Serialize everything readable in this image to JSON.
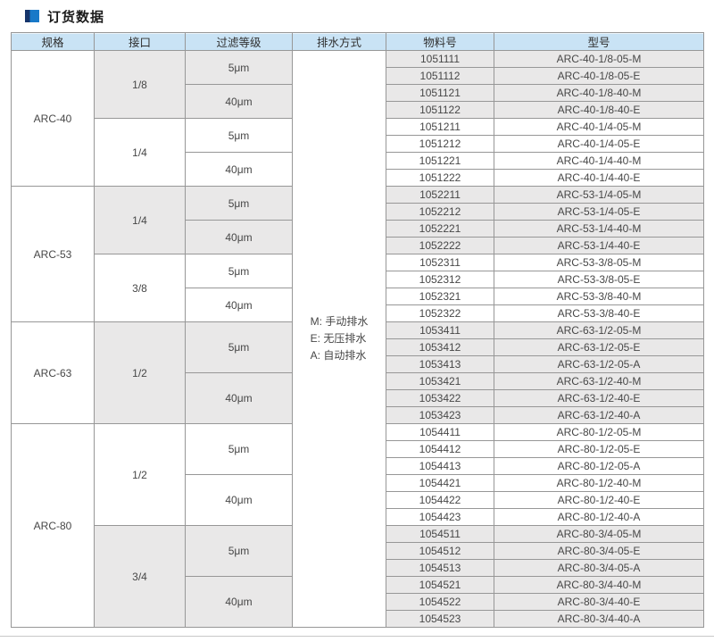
{
  "page": {
    "title": "订货数据",
    "accent_dark_blue": "#16356b",
    "accent_blue": "#1879c8",
    "header_bg": "#c9e3f5",
    "shaded_row_bg": "#e9e8e8"
  },
  "table": {
    "headers": [
      "规格",
      "接口",
      "过滤等级",
      "排水方式",
      "物料号",
      "型号"
    ],
    "drain_legend": [
      "M: 手动排水",
      "E: 无压排水",
      "A: 自动排水"
    ],
    "groups": [
      {
        "spec": "ARC-40",
        "subgroups": [
          {
            "port": "1/8",
            "shaded": true,
            "filters": [
              {
                "grade": "5μm",
                "rows": [
                  {
                    "material": "1051111",
                    "model": "ARC-40-1/8-05-M"
                  },
                  {
                    "material": "1051112",
                    "model": "ARC-40-1/8-05-E"
                  }
                ]
              },
              {
                "grade": "40μm",
                "rows": [
                  {
                    "material": "1051121",
                    "model": "ARC-40-1/8-40-M"
                  },
                  {
                    "material": "1051122",
                    "model": "ARC-40-1/8-40-E"
                  }
                ]
              }
            ]
          },
          {
            "port": "1/4",
            "shaded": false,
            "filters": [
              {
                "grade": "5μm",
                "rows": [
                  {
                    "material": "1051211",
                    "model": "ARC-40-1/4-05-M"
                  },
                  {
                    "material": "1051212",
                    "model": "ARC-40-1/4-05-E"
                  }
                ]
              },
              {
                "grade": "40μm",
                "rows": [
                  {
                    "material": "1051221",
                    "model": "ARC-40-1/4-40-M"
                  },
                  {
                    "material": "1051222",
                    "model": "ARC-40-1/4-40-E"
                  }
                ]
              }
            ]
          }
        ]
      },
      {
        "spec": "ARC-53",
        "subgroups": [
          {
            "port": "1/4",
            "shaded": true,
            "filters": [
              {
                "grade": "5μm",
                "rows": [
                  {
                    "material": "1052211",
                    "model": "ARC-53-1/4-05-M"
                  },
                  {
                    "material": "1052212",
                    "model": "ARC-53-1/4-05-E"
                  }
                ]
              },
              {
                "grade": "40μm",
                "rows": [
                  {
                    "material": "1052221",
                    "model": "ARC-53-1/4-40-M"
                  },
                  {
                    "material": "1052222",
                    "model": "ARC-53-1/4-40-E"
                  }
                ]
              }
            ]
          },
          {
            "port": "3/8",
            "shaded": false,
            "filters": [
              {
                "grade": "5μm",
                "rows": [
                  {
                    "material": "1052311",
                    "model": "ARC-53-3/8-05-M"
                  },
                  {
                    "material": "1052312",
                    "model": "ARC-53-3/8-05-E"
                  }
                ]
              },
              {
                "grade": "40μm",
                "rows": [
                  {
                    "material": "1052321",
                    "model": "ARC-53-3/8-40-M"
                  },
                  {
                    "material": "1052322",
                    "model": "ARC-53-3/8-40-E"
                  }
                ]
              }
            ]
          }
        ]
      },
      {
        "spec": "ARC-63",
        "subgroups": [
          {
            "port": "1/2",
            "shaded": true,
            "filters": [
              {
                "grade": "5μm",
                "rows": [
                  {
                    "material": "1053411",
                    "model": "ARC-63-1/2-05-M"
                  },
                  {
                    "material": "1053412",
                    "model": "ARC-63-1/2-05-E"
                  },
                  {
                    "material": "1053413",
                    "model": "ARC-63-1/2-05-A"
                  }
                ]
              },
              {
                "grade": "40μm",
                "rows": [
                  {
                    "material": "1053421",
                    "model": "ARC-63-1/2-40-M"
                  },
                  {
                    "material": "1053422",
                    "model": "ARC-63-1/2-40-E"
                  },
                  {
                    "material": "1053423",
                    "model": "ARC-63-1/2-40-A"
                  }
                ]
              }
            ]
          }
        ]
      },
      {
        "spec": "ARC-80",
        "subgroups": [
          {
            "port": "1/2",
            "shaded": false,
            "filters": [
              {
                "grade": "5μm",
                "rows": [
                  {
                    "material": "1054411",
                    "model": "ARC-80-1/2-05-M"
                  },
                  {
                    "material": "1054412",
                    "model": "ARC-80-1/2-05-E"
                  },
                  {
                    "material": "1054413",
                    "model": "ARC-80-1/2-05-A"
                  }
                ]
              },
              {
                "grade": "40μm",
                "rows": [
                  {
                    "material": "1054421",
                    "model": "ARC-80-1/2-40-M"
                  },
                  {
                    "material": "1054422",
                    "model": "ARC-80-1/2-40-E"
                  },
                  {
                    "material": "1054423",
                    "model": "ARC-80-1/2-40-A"
                  }
                ]
              }
            ]
          },
          {
            "port": "3/4",
            "shaded": true,
            "filters": [
              {
                "grade": "5μm",
                "rows": [
                  {
                    "material": "1054511",
                    "model": "ARC-80-3/4-05-M"
                  },
                  {
                    "material": "1054512",
                    "model": "ARC-80-3/4-05-E"
                  },
                  {
                    "material": "1054513",
                    "model": "ARC-80-3/4-05-A"
                  }
                ]
              },
              {
                "grade": "40μm",
                "rows": [
                  {
                    "material": "1054521",
                    "model": "ARC-80-3/4-40-M"
                  },
                  {
                    "material": "1054522",
                    "model": "ARC-80-3/4-40-E"
                  },
                  {
                    "material": "1054523",
                    "model": "ARC-80-3/4-40-A"
                  }
                ]
              }
            ]
          }
        ]
      }
    ]
  }
}
